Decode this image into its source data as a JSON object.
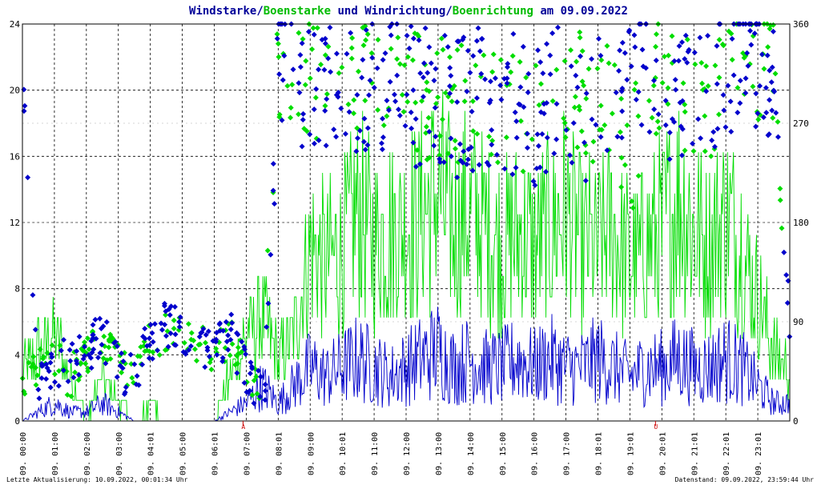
{
  "title": {
    "part1": "Windstarke",
    "sep1": "/",
    "part2": "Boenstarke",
    "mid": " und ",
    "part3": "Windrichtung",
    "sep2": "/",
    "part4": "Boenrichtung",
    "suffix": " am 09.09.2022"
  },
  "footer": {
    "left": "Letzte Aktualisierung: 10.09.2022, 00:01:34 Uhr",
    "right": "Datenstand: 09.09.2022, 23:59:44 Uhr"
  },
  "markers": {
    "sunrise_label": "A",
    "sunset_label": "U"
  },
  "colors": {
    "wind": "#0000cc",
    "gust": "#00dd00",
    "title_dark": "#000099",
    "title_green": "#00bb00"
  },
  "chart_data": {
    "type": "line",
    "x_unit": "hours of day 09.09.2022",
    "xlim": [
      0,
      24
    ],
    "ylim": [
      0,
      24
    ],
    "y2lim": [
      0,
      360
    ],
    "y_ticks": [
      "0",
      "4",
      "8",
      "12",
      "16",
      "20",
      "24"
    ],
    "y2_ticks": [
      "0",
      "90",
      "180",
      "270",
      "360"
    ],
    "x_ticks": [
      "09. 00:00",
      "09. 01:00",
      "09. 02:00",
      "09. 03:00",
      "09. 04:01",
      "09. 05:00",
      "09. 06:01",
      "09. 07:00",
      "09. 08:01",
      "09. 09:00",
      "09. 10:01",
      "09. 11:00",
      "09. 12:00",
      "09. 13:00",
      "09. 14:00",
      "09. 15:00",
      "09. 16:00",
      "09. 17:00",
      "09. 18:01",
      "09. 19:01",
      "09. 20:01",
      "09. 21:01",
      "09. 22:01",
      "09. 23:01"
    ],
    "grid": true,
    "series": [
      {
        "name": "Windstarke",
        "color": "#0000cc",
        "x": [
          0.0,
          0.5,
          1.0,
          1.5,
          2.0,
          2.5,
          3.0,
          3.5,
          4.0,
          4.5,
          5.0,
          5.5,
          6.0,
          6.5,
          7.0,
          7.5,
          8.0,
          8.5,
          9.0,
          9.5,
          10.0,
          10.5,
          11.0,
          11.5,
          12.0,
          12.5,
          13.0,
          13.5,
          14.0,
          14.5,
          15.0,
          15.5,
          16.0,
          16.5,
          17.0,
          17.5,
          18.0,
          18.5,
          19.0,
          19.5,
          20.0,
          20.5,
          21.0,
          21.5,
          22.0,
          22.5,
          23.0,
          23.5,
          24.0
        ],
        "y": [
          0,
          0.5,
          1,
          0.5,
          0.5,
          1,
          0.5,
          0,
          0,
          0,
          0,
          0,
          0,
          0.5,
          1,
          2,
          1,
          2,
          3,
          2.5,
          3,
          3.5,
          3,
          2.5,
          3,
          3.5,
          4,
          3,
          3.5,
          3,
          3,
          3.5,
          3,
          3.5,
          3,
          3,
          3.5,
          3,
          2.5,
          3,
          3,
          3.5,
          3,
          3,
          3.5,
          3,
          2,
          1,
          1
        ]
      },
      {
        "name": "Boenstarke",
        "color": "#00dd00",
        "x": [
          0.0,
          0.5,
          1.0,
          1.5,
          2.0,
          2.5,
          3.0,
          3.5,
          4.0,
          4.5,
          5.0,
          5.5,
          6.0,
          6.5,
          7.0,
          7.5,
          8.0,
          8.5,
          9.0,
          9.5,
          10.0,
          10.5,
          11.0,
          11.5,
          12.0,
          12.5,
          13.0,
          13.5,
          14.0,
          14.5,
          15.0,
          15.5,
          16.0,
          16.5,
          17.0,
          17.5,
          18.0,
          18.5,
          19.0,
          19.5,
          20.0,
          20.5,
          21.0,
          21.5,
          22.0,
          22.5,
          23.0,
          23.5,
          24.0
        ],
        "y": [
          2.5,
          4,
          5,
          2.5,
          0,
          2.5,
          1,
          0,
          1,
          0,
          0,
          0,
          0,
          2.5,
          5,
          6,
          3.5,
          5,
          10,
          9,
          10,
          12,
          10,
          11,
          11,
          12,
          13,
          11,
          12,
          11,
          10,
          11,
          10,
          11,
          12,
          10,
          10,
          11,
          9,
          10,
          11,
          13,
          11,
          10,
          12,
          10,
          7,
          4,
          3
        ]
      },
      {
        "name": "Windrichtung",
        "color": "#0000cc",
        "axis": "right",
        "x": [
          0.0,
          0.5,
          1.0,
          1.5,
          2.0,
          2.5,
          3.0,
          3.5,
          4.0,
          4.5,
          5.0,
          5.5,
          6.0,
          6.5,
          7.0,
          7.5,
          8.0,
          8.5,
          9.0,
          9.5,
          10.0,
          10.5,
          11.0,
          11.5,
          12.0,
          12.5,
          13.0,
          13.5,
          14.0,
          14.5,
          15.0,
          15.5,
          16.0,
          16.5,
          17.0,
          17.5,
          18.0,
          18.5,
          19.0,
          19.5,
          20.0,
          20.5,
          21.0,
          21.5,
          22.0,
          22.5,
          23.0,
          23.5,
          24.0
        ],
        "y": [
          320,
          30,
          45,
          60,
          58,
          80,
          45,
          40,
          75,
          85,
          78,
          70,
          60,
          80,
          40,
          20,
          330,
          320,
          300,
          310,
          290,
          295,
          300,
          310,
          300,
          290,
          300,
          280,
          290,
          300,
          280,
          290,
          270,
          290,
          300,
          280,
          290,
          300,
          310,
          320,
          300,
          290,
          280,
          300,
          320,
          340,
          330,
          320,
          90
        ]
      },
      {
        "name": "Boenrichtung",
        "color": "#00dd00",
        "axis": "right",
        "x": [
          0.0,
          0.5,
          1.0,
          1.5,
          2.0,
          2.5,
          3.0,
          3.5,
          4.0,
          4.5,
          5.0,
          5.5,
          6.0,
          6.5,
          7.0,
          7.5,
          8.0,
          8.5,
          9.0,
          9.5,
          10.0,
          10.5,
          11.0,
          11.5,
          12.0,
          12.5,
          13.0,
          13.5,
          14.0,
          14.5,
          15.0,
          15.5,
          16.0,
          16.5,
          17.0,
          17.5,
          18.0,
          18.5,
          19.0,
          19.5,
          20.0,
          20.5,
          21.0,
          21.5,
          22.0,
          22.5,
          23.0,
          23.5,
          24.0
        ],
        "y": [
          40,
          50,
          55,
          40,
          60,
          78,
          50,
          45,
          70,
          80,
          75,
          70,
          60,
          75,
          45,
          30,
          330,
          325,
          310,
          300,
          300,
          310,
          295,
          300,
          310,
          290,
          295,
          285,
          300,
          295,
          285,
          280,
          265,
          285,
          295,
          300,
          280,
          290,
          230,
          310,
          310,
          300,
          290,
          280,
          310,
          330,
          320,
          330,
          50
        ]
      }
    ],
    "annotations": [
      {
        "label": "A",
        "x": 6.9
      },
      {
        "label": "U",
        "x": 19.8
      }
    ]
  }
}
